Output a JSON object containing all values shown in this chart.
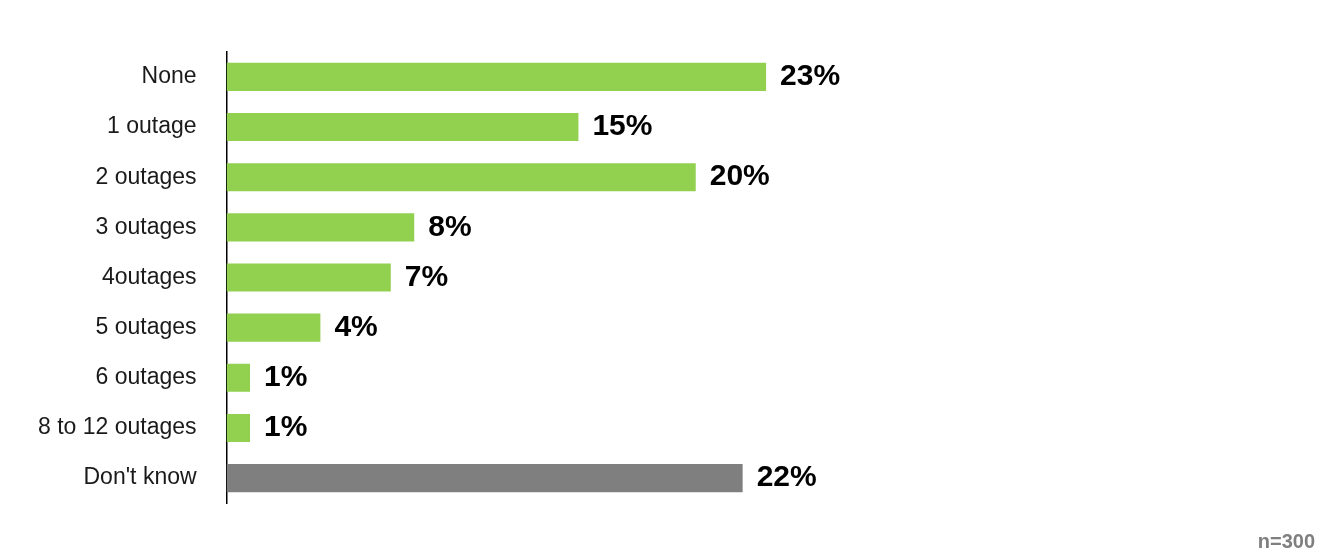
{
  "chart_data": {
    "type": "bar",
    "orientation": "horizontal",
    "categories": [
      "None",
      "1 outage",
      "2 outages",
      "3 outages",
      "4outages",
      "5 outages",
      "6 outages",
      "8 to 12 outages",
      "Don't know"
    ],
    "values": [
      23,
      15,
      20,
      8,
      7,
      4,
      1,
      1,
      22
    ],
    "colors": [
      "#92d050",
      "#92d050",
      "#92d050",
      "#92d050",
      "#92d050",
      "#92d050",
      "#92d050",
      "#92d050",
      "#7f7f7f"
    ],
    "value_labels": [
      "23%",
      "15%",
      "20%",
      "8%",
      "7%",
      "4%",
      "1%",
      "1%",
      "22%"
    ],
    "annotations": [
      "n=300"
    ],
    "grid": false,
    "legend": false
  }
}
